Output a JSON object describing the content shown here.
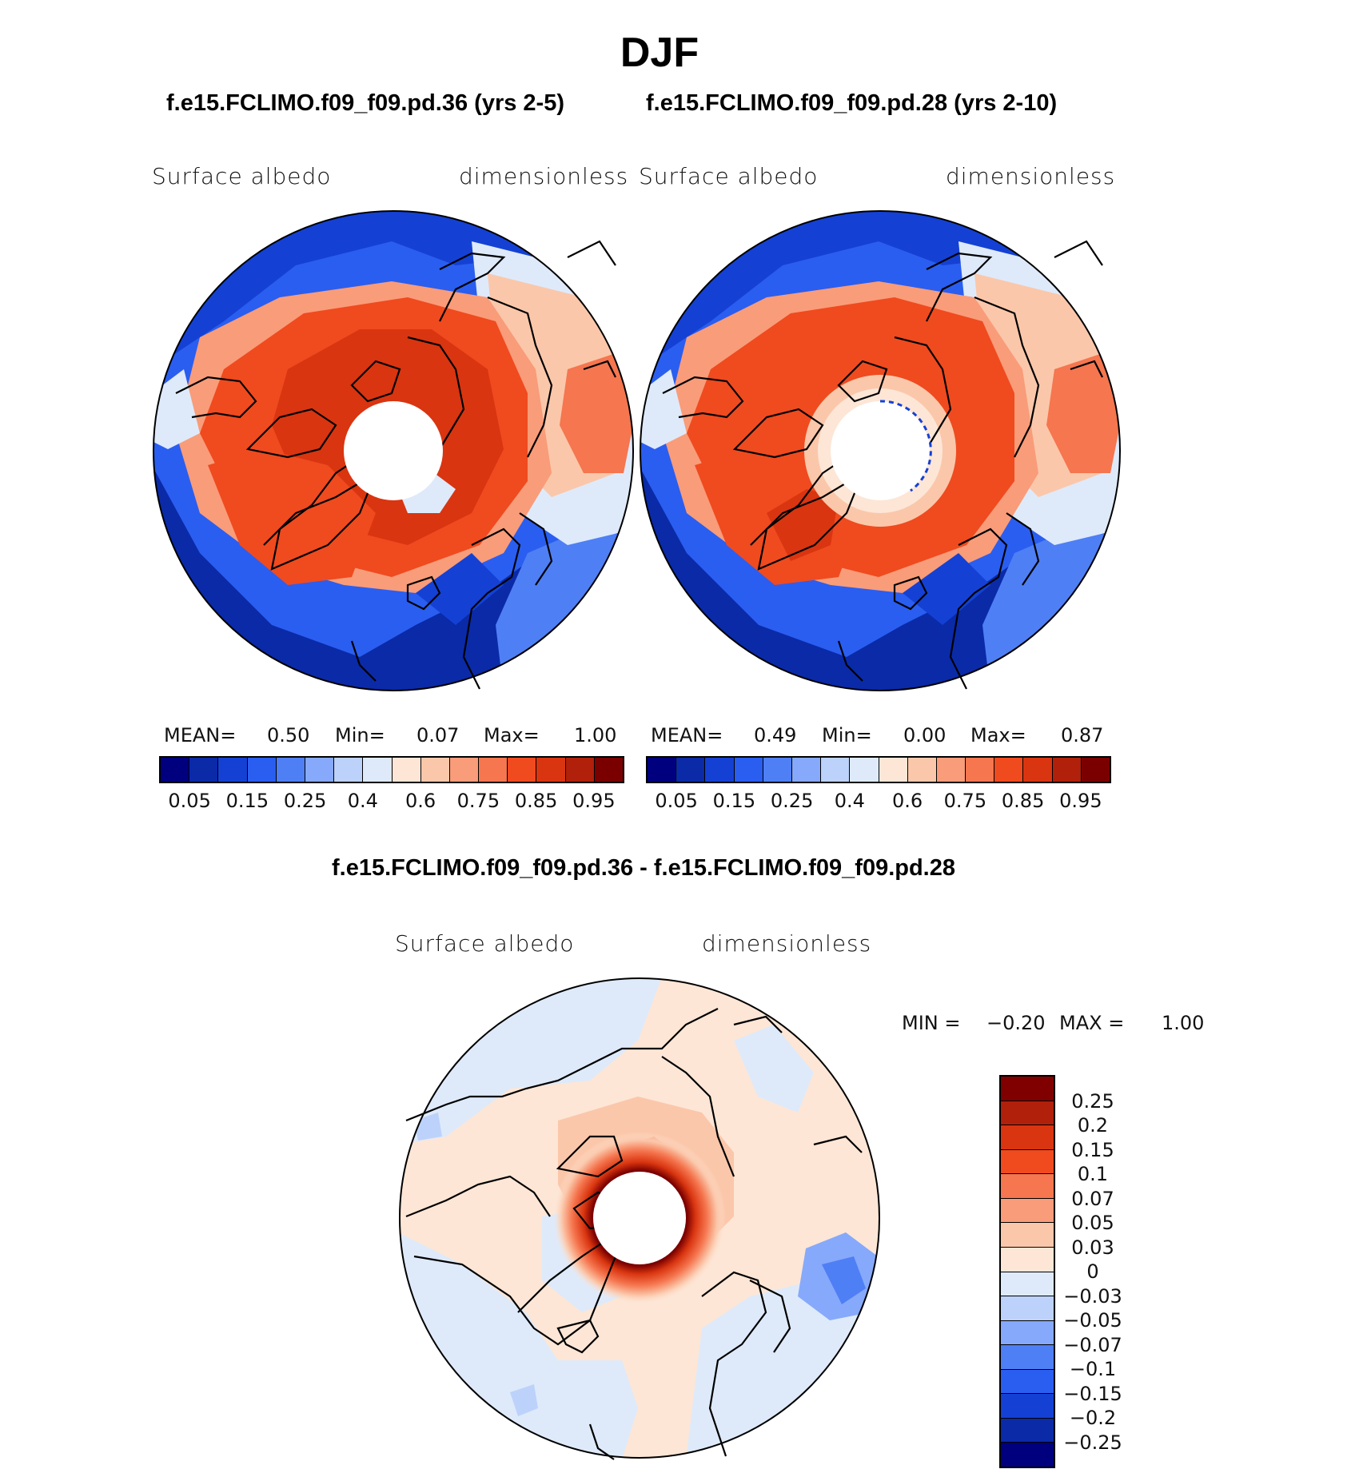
{
  "title": "DJF",
  "panels": [
    {
      "case_title": "f.e15.FCLIMO.f09_f09.pd.36 (yrs 2-5)",
      "left_label": "Surface  albedo",
      "right_label": "dimensionless",
      "stats": {
        "mean_label": "MEAN=",
        "mean": "0.50",
        "min_label": "Min=",
        "min": "0.07",
        "max_label": "Max=",
        "max": "1.00"
      }
    },
    {
      "case_title": "f.e15.FCLIMO.f09_f09.pd.28 (yrs 2-10)",
      "left_label": "Surface  albedo",
      "right_label": "dimensionless",
      "stats": {
        "mean_label": "MEAN=",
        "mean": "0.49",
        "min_label": "Min=",
        "min": "0.00",
        "max_label": "Max=",
        "max": "0.87"
      }
    }
  ],
  "abs_colorbar": {
    "colors": [
      "#00007f",
      "#0a2aa8",
      "#1441d4",
      "#2a5ef0",
      "#4f7ff5",
      "#86a9fb",
      "#bcd2fb",
      "#deeafa",
      "#fde6d6",
      "#fbc7aa",
      "#f99c79",
      "#f5764f",
      "#f04a1f",
      "#d93510",
      "#b0200a",
      "#7a0000"
    ],
    "tick_labels": [
      "0.05",
      "0.15",
      "0.25",
      "0.4",
      "0.6",
      "0.75",
      "0.85",
      "0.95"
    ]
  },
  "diff_panel": {
    "title": "f.e15.FCLIMO.f09_f09.pd.36 - f.e15.FCLIMO.f09_f09.pd.28",
    "left_label": "Surface  albedo",
    "right_label": "dimensionless",
    "min_label": "MIN =",
    "min": "−0.20",
    "max_label": "MAX =",
    "max": "1.00"
  },
  "diff_colorbar": {
    "colors": [
      "#800000",
      "#b0200a",
      "#d93510",
      "#f04a1f",
      "#f5764f",
      "#f99c79",
      "#fbc7aa",
      "#fde6d6",
      "#deeafa",
      "#bcd2fb",
      "#86a9fb",
      "#4f7ff5",
      "#2a5ef0",
      "#1441d4",
      "#0a2aa8",
      "#00007f"
    ],
    "tick_labels": [
      "0.25",
      "0.2",
      "0.15",
      "0.1",
      "0.07",
      "0.05",
      "0.03",
      "0",
      "−0.03",
      "−0.05",
      "−0.07",
      "−0.1",
      "−0.15",
      "−0.2",
      "−0.25"
    ]
  }
}
